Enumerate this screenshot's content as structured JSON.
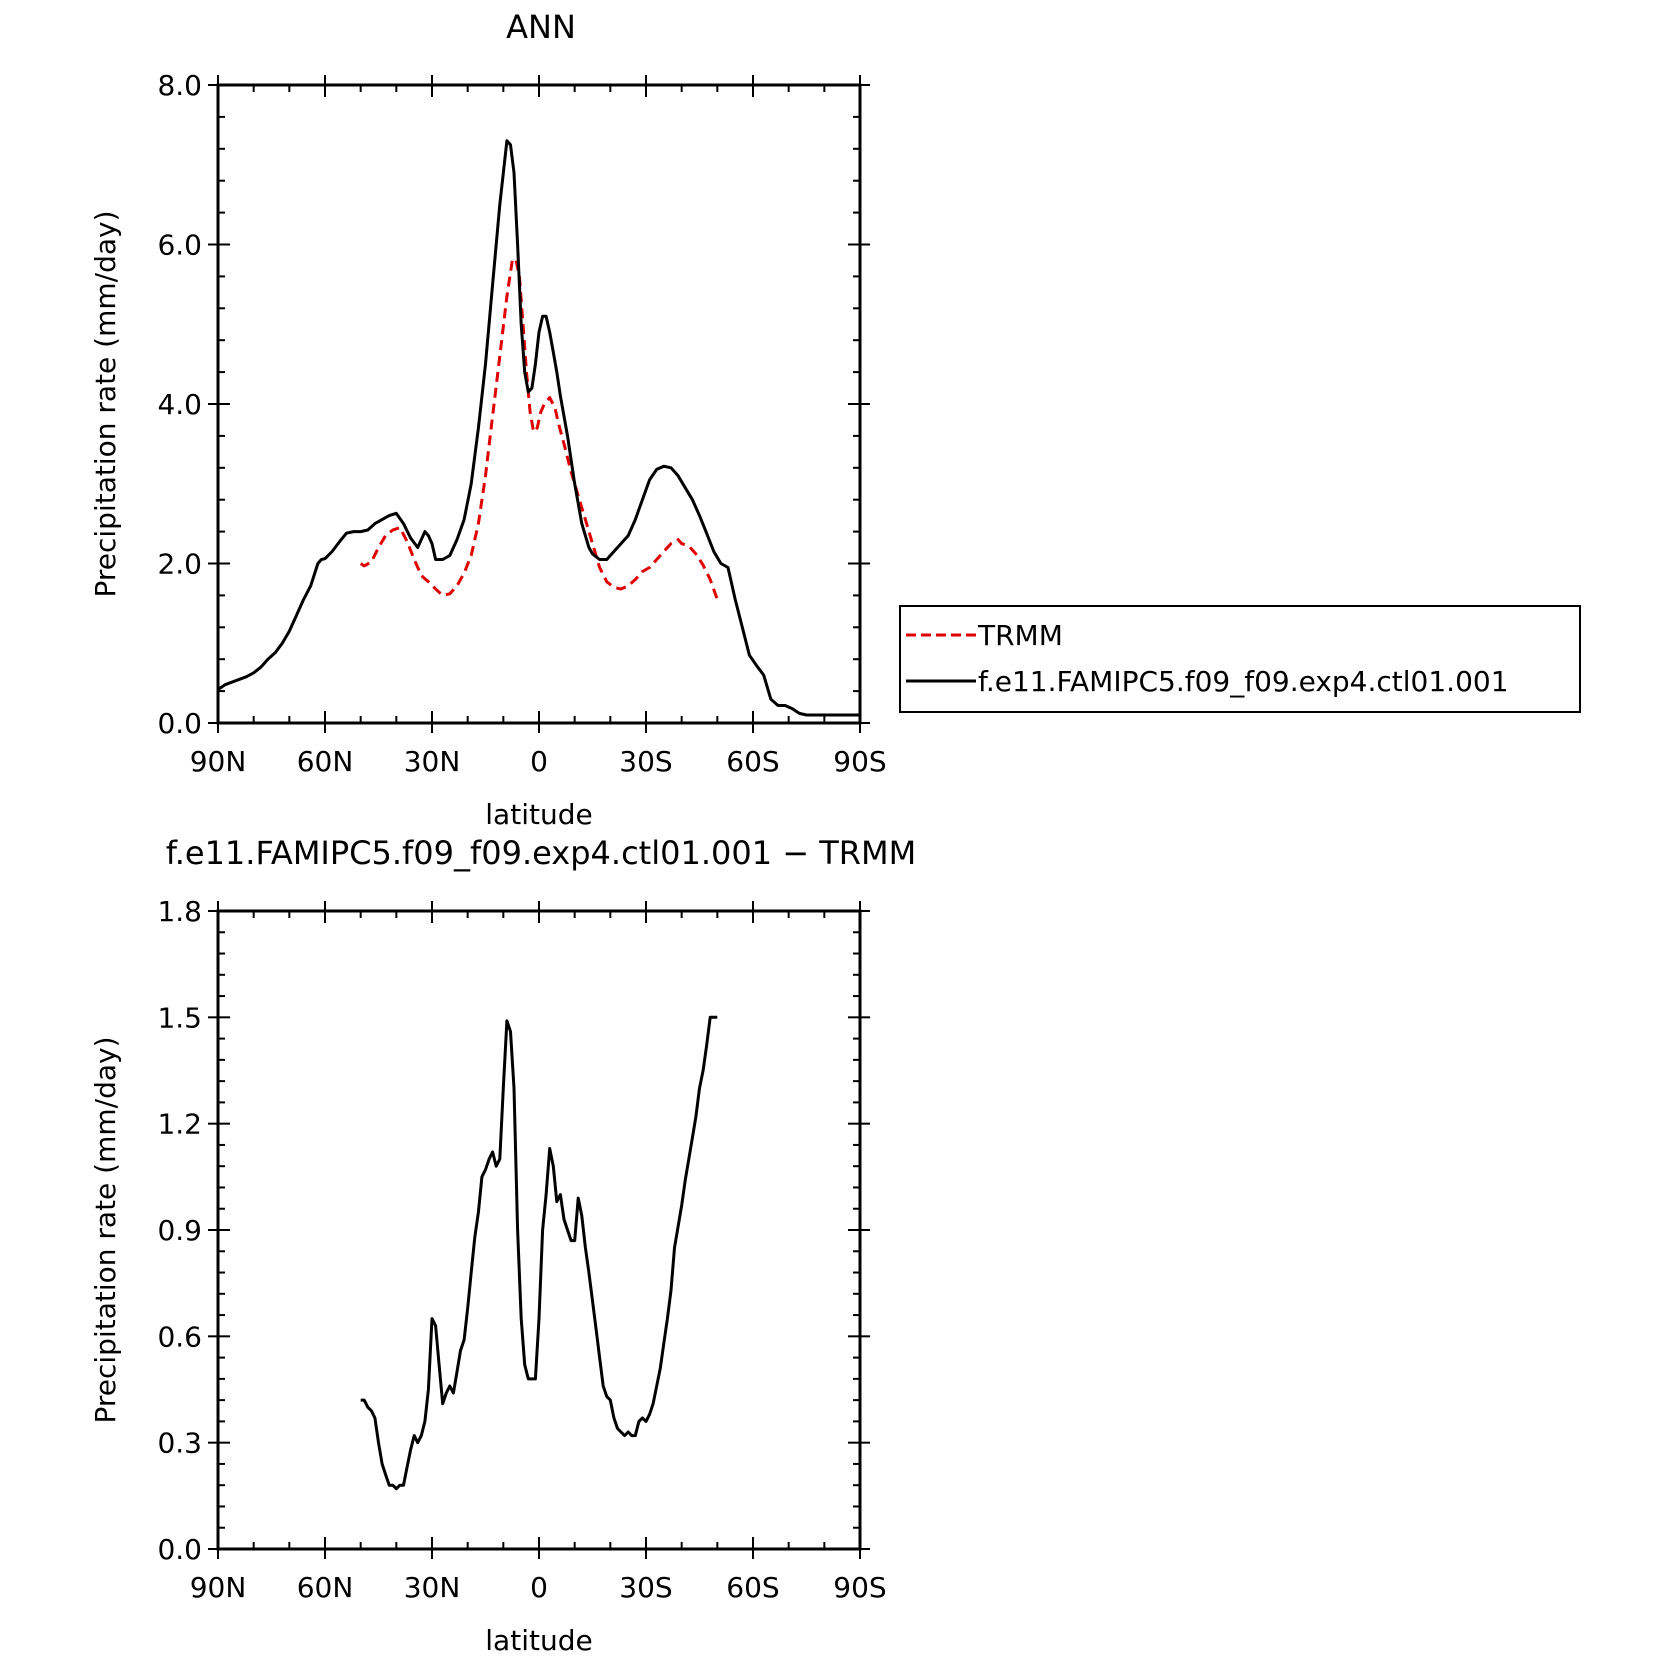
{
  "chart_data": [
    {
      "type": "line",
      "title": "ANN",
      "xlabel": "latitude",
      "ylabel": "Precipitation rate (mm/day)",
      "xlim": [
        90,
        -90
      ],
      "ylim": [
        0,
        8
      ],
      "xticks": [
        90,
        60,
        30,
        0,
        -30,
        -60,
        -90
      ],
      "xtick_labels": [
        "90N",
        "60N",
        "30N",
        "0",
        "30S",
        "60S",
        "90S"
      ],
      "yticks": [
        0,
        2,
        4,
        6,
        8
      ],
      "ytick_labels": [
        "0.0",
        "2.0",
        "4.0",
        "6.0",
        "8.0"
      ],
      "legend": "right",
      "series": [
        {
          "name": "TRMM",
          "color": "#e00000",
          "style": "dashed",
          "x": [
            50,
            49,
            47,
            45,
            43,
            41,
            39,
            37,
            35,
            33,
            31,
            29,
            27,
            25,
            23,
            21,
            19,
            17,
            15,
            13,
            11,
            9,
            7.5,
            6.5,
            5.5,
            4.5,
            3.5,
            2.5,
            1.5,
            0.5,
            -0.5,
            -1.5,
            -3,
            -4.5,
            -5.5,
            -7,
            -9,
            -11,
            -13,
            -15,
            -17,
            -19,
            -21,
            -23,
            -25,
            -27,
            -29,
            -31,
            -33,
            -35,
            -37,
            -39,
            -40,
            -42,
            -44,
            -46,
            -48,
            -50
          ],
          "y": [
            2.0,
            1.97,
            2.02,
            2.2,
            2.35,
            2.42,
            2.45,
            2.28,
            2.05,
            1.85,
            1.77,
            1.68,
            1.6,
            1.62,
            1.72,
            1.88,
            2.1,
            2.5,
            3.1,
            3.85,
            4.6,
            5.35,
            5.8,
            5.82,
            5.6,
            5.0,
            4.4,
            3.9,
            3.65,
            3.7,
            3.9,
            4.0,
            4.08,
            3.95,
            3.75,
            3.5,
            3.15,
            2.85,
            2.55,
            2.25,
            1.95,
            1.77,
            1.7,
            1.68,
            1.72,
            1.8,
            1.9,
            1.95,
            2.05,
            2.15,
            2.25,
            2.3,
            2.25,
            2.22,
            2.12,
            1.98,
            1.8,
            1.55
          ]
        },
        {
          "name": "f.e11.FAMIPC5.f09_f09.exp4.ctl01.001",
          "color": "#000000",
          "style": "solid",
          "x": [
            90,
            88,
            85,
            82,
            80,
            78,
            76,
            74,
            72,
            70,
            68,
            66,
            64,
            62,
            61,
            60,
            58,
            56,
            54,
            52,
            50,
            48,
            46,
            44,
            42,
            40,
            38,
            36,
            34,
            32,
            31,
            30,
            29,
            27,
            25,
            23,
            21,
            19,
            17,
            15,
            13,
            11,
            9,
            8,
            7,
            6,
            5,
            4,
            3,
            2,
            1,
            0,
            -1,
            -2,
            -3,
            -4,
            -5,
            -6,
            -8,
            -10,
            -12,
            -14,
            -15,
            -17,
            -19,
            -21,
            -23,
            -25,
            -27,
            -29,
            -31,
            -33,
            -35,
            -37,
            -39,
            -41,
            -43,
            -45,
            -47,
            -49,
            -51,
            -53,
            -55,
            -57,
            -59,
            -61,
            -63,
            -65,
            -67,
            -69,
            -71,
            -73,
            -75,
            -77,
            -79,
            -81,
            -83,
            -85,
            -87,
            -90
          ],
          "y": [
            0.42,
            0.48,
            0.53,
            0.58,
            0.63,
            0.7,
            0.8,
            0.88,
            1.0,
            1.15,
            1.35,
            1.55,
            1.72,
            2.0,
            2.05,
            2.06,
            2.15,
            2.27,
            2.38,
            2.4,
            2.4,
            2.42,
            2.5,
            2.55,
            2.6,
            2.63,
            2.5,
            2.32,
            2.2,
            2.4,
            2.35,
            2.25,
            2.05,
            2.05,
            2.1,
            2.3,
            2.55,
            3.0,
            3.7,
            4.5,
            5.5,
            6.5,
            7.3,
            7.25,
            6.9,
            6.0,
            5.0,
            4.4,
            4.15,
            4.2,
            4.5,
            4.9,
            5.1,
            5.1,
            4.9,
            4.65,
            4.4,
            4.1,
            3.6,
            3.0,
            2.5,
            2.2,
            2.12,
            2.05,
            2.05,
            2.15,
            2.25,
            2.35,
            2.55,
            2.8,
            3.05,
            3.18,
            3.22,
            3.2,
            3.1,
            2.95,
            2.8,
            2.6,
            2.38,
            2.15,
            2.0,
            1.95,
            1.55,
            1.2,
            0.85,
            0.72,
            0.6,
            0.3,
            0.22,
            0.22,
            0.18,
            0.12,
            0.1,
            0.1,
            0.1,
            0.1,
            0.1,
            0.1,
            0.1,
            0.1
          ]
        }
      ]
    },
    {
      "type": "line",
      "title": "f.e11.FAMIPC5.f09_f09.exp4.ctl01.001 − TRMM",
      "xlabel": "latitude",
      "ylabel": "Precipitation rate (mm/day)",
      "xlim": [
        90,
        -90
      ],
      "ylim": [
        0,
        1.8
      ],
      "xticks": [
        90,
        60,
        30,
        0,
        -30,
        -60,
        -90
      ],
      "xtick_labels": [
        "90N",
        "60N",
        "30N",
        "0",
        "30S",
        "60S",
        "90S"
      ],
      "yticks": [
        0,
        0.3,
        0.6,
        0.9,
        1.2,
        1.5,
        1.8
      ],
      "ytick_labels": [
        "0.0",
        "0.3",
        "0.6",
        "0.9",
        "1.2",
        "1.5",
        "1.8"
      ],
      "series": [
        {
          "color": "#000000",
          "style": "solid",
          "x": [
            50,
            49,
            48,
            47,
            46,
            45,
            44,
            43,
            42,
            41,
            40,
            39,
            38,
            37,
            36,
            35,
            34,
            33,
            32,
            31,
            30,
            29,
            28,
            27,
            26,
            25,
            24,
            23,
            22,
            21,
            20,
            19,
            18,
            17,
            16,
            15,
            14,
            13,
            12,
            11,
            10,
            9,
            8,
            7,
            6,
            5,
            4,
            3,
            2,
            1,
            0,
            -1,
            -2,
            -3,
            -4,
            -5,
            -6,
            -7,
            -8,
            -9,
            -10,
            -11,
            -12,
            -13,
            -14,
            -15,
            -16,
            -17,
            -18,
            -19,
            -20,
            -21,
            -22,
            -23,
            -24,
            -25,
            -26,
            -27,
            -28,
            -29,
            -30,
            -31,
            -32,
            -33,
            -34,
            -35,
            -36,
            -37,
            -38,
            -39,
            -40,
            -41,
            -42,
            -43,
            -44,
            -45,
            -46,
            -47,
            -48,
            -49,
            -50
          ],
          "y": [
            0.42,
            0.42,
            0.4,
            0.39,
            0.37,
            0.3,
            0.24,
            0.21,
            0.18,
            0.18,
            0.17,
            0.18,
            0.18,
            0.23,
            0.28,
            0.32,
            0.3,
            0.32,
            0.36,
            0.45,
            0.65,
            0.63,
            0.52,
            0.41,
            0.44,
            0.46,
            0.44,
            0.5,
            0.56,
            0.59,
            0.68,
            0.78,
            0.88,
            0.95,
            1.05,
            1.07,
            1.1,
            1.12,
            1.08,
            1.1,
            1.3,
            1.49,
            1.46,
            1.3,
            0.9,
            0.65,
            0.52,
            0.48,
            0.48,
            0.48,
            0.65,
            0.9,
            1.0,
            1.13,
            1.08,
            0.98,
            1.0,
            0.93,
            0.9,
            0.87,
            0.87,
            0.99,
            0.94,
            0.85,
            0.78,
            0.7,
            0.62,
            0.54,
            0.46,
            0.43,
            0.42,
            0.37,
            0.34,
            0.33,
            0.32,
            0.33,
            0.32,
            0.32,
            0.36,
            0.37,
            0.36,
            0.38,
            0.41,
            0.46,
            0.51,
            0.58,
            0.65,
            0.73,
            0.85,
            0.91,
            0.97,
            1.04,
            1.1,
            1.16,
            1.22,
            1.3,
            1.35,
            1.42,
            1.5,
            1.5,
            1.5
          ]
        }
      ]
    }
  ]
}
